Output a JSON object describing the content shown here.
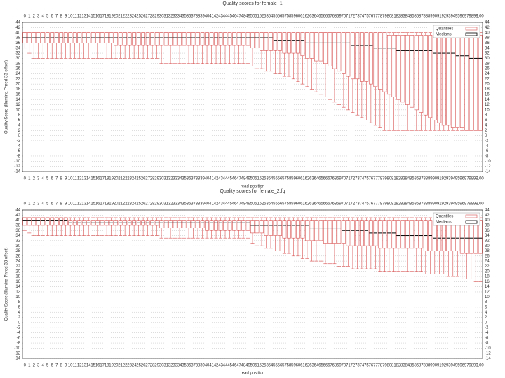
{
  "chart_data": [
    {
      "type": "box",
      "title": "Quality scores for female_1",
      "xlabel": "read position",
      "ylabel": "Quality Score (Illumina Phred-33 offset)",
      "legend": "top-right",
      "legend_labels": [
        "Quantiles",
        "Medians"
      ],
      "box_color": "#d85050",
      "median_color": "#000000",
      "grid": true,
      "ylim": [
        -14,
        44
      ],
      "yticks": [
        -14,
        -12,
        -10,
        -8,
        -6,
        -4,
        -2,
        0,
        2,
        4,
        6,
        8,
        10,
        12,
        14,
        16,
        18,
        20,
        22,
        24,
        26,
        28,
        30,
        32,
        34,
        36,
        38,
        40,
        42,
        44
      ],
      "categories": [
        0,
        1,
        2,
        3,
        4,
        5,
        6,
        7,
        8,
        9,
        10,
        11,
        12,
        13,
        14,
        15,
        16,
        17,
        18,
        19,
        20,
        21,
        22,
        23,
        24,
        25,
        26,
        27,
        28,
        29,
        30,
        31,
        32,
        33,
        34,
        35,
        36,
        37,
        38,
        39,
        40,
        41,
        42,
        43,
        44,
        45,
        46,
        47,
        48,
        49,
        50,
        51,
        52,
        53,
        54,
        55,
        56,
        57,
        58,
        59,
        60,
        61,
        62,
        63,
        64,
        65,
        66,
        67,
        68,
        69,
        70,
        71,
        72,
        73,
        74,
        75,
        76,
        77,
        78,
        79,
        80,
        81,
        82,
        83,
        84,
        85,
        86,
        87,
        88,
        89,
        90,
        91,
        92,
        93,
        94,
        95,
        96,
        97,
        98,
        99,
        100
      ],
      "whislo": [
        34,
        32,
        30,
        30,
        30,
        30,
        30,
        30,
        30,
        30,
        30,
        30,
        30,
        30,
        30,
        30,
        30,
        30,
        30,
        30,
        30,
        30,
        30,
        30,
        30,
        30,
        30,
        30,
        30,
        30,
        28,
        28,
        28,
        28,
        28,
        28,
        28,
        28,
        28,
        28,
        28,
        28,
        28,
        28,
        28,
        28,
        28,
        28,
        28,
        28,
        27,
        26,
        26,
        25,
        25,
        24,
        24,
        23,
        23,
        22,
        21,
        20,
        19,
        18,
        17,
        16,
        15,
        14,
        13,
        12,
        11,
        10,
        9,
        8,
        7,
        6,
        5,
        4,
        3,
        2,
        2,
        2,
        2,
        2,
        2,
        2,
        2,
        2,
        2,
        2,
        2,
        2,
        2,
        2,
        2,
        2,
        2,
        2,
        2,
        2,
        2
      ],
      "q1": [
        36,
        36,
        36,
        36,
        36,
        36,
        36,
        36,
        36,
        36,
        36,
        36,
        36,
        36,
        36,
        36,
        36,
        36,
        36,
        36,
        35,
        35,
        35,
        35,
        35,
        35,
        35,
        35,
        35,
        35,
        35,
        35,
        35,
        35,
        35,
        35,
        35,
        35,
        35,
        35,
        35,
        35,
        35,
        35,
        35,
        35,
        35,
        35,
        35,
        35,
        34,
        34,
        33,
        33,
        33,
        33,
        33,
        32,
        32,
        32,
        32,
        31,
        30,
        30,
        29,
        29,
        28,
        27,
        26,
        25,
        24,
        23,
        22,
        22,
        21,
        21,
        20,
        19,
        18,
        17,
        16,
        15,
        14,
        13,
        12,
        11,
        10,
        9,
        8,
        7,
        6,
        5,
        4,
        4,
        3,
        3,
        3,
        2,
        2,
        2,
        2
      ],
      "med": [
        38,
        38,
        38,
        38,
        38,
        38,
        38,
        38,
        38,
        38,
        38,
        38,
        38,
        38,
        38,
        38,
        38,
        38,
        38,
        38,
        38,
        38,
        38,
        38,
        38,
        38,
        38,
        38,
        38,
        38,
        38,
        38,
        38,
        38,
        38,
        38,
        38,
        38,
        38,
        38,
        38,
        38,
        38,
        38,
        38,
        38,
        38,
        38,
        38,
        38,
        38,
        38,
        38,
        38,
        38,
        37,
        37,
        37,
        37,
        37,
        37,
        37,
        36,
        36,
        36,
        36,
        36,
        36,
        36,
        36,
        36,
        36,
        35,
        35,
        35,
        35,
        35,
        34,
        34,
        34,
        34,
        34,
        33,
        33,
        33,
        33,
        33,
        33,
        33,
        33,
        32,
        32,
        32,
        32,
        32,
        31,
        31,
        31,
        30,
        30,
        30
      ],
      "q3": [
        40,
        40,
        40,
        40,
        40,
        40,
        40,
        40,
        40,
        40,
        40,
        40,
        40,
        40,
        40,
        40,
        40,
        40,
        40,
        40,
        40,
        40,
        40,
        40,
        40,
        40,
        40,
        40,
        40,
        40,
        40,
        40,
        40,
        40,
        40,
        40,
        40,
        40,
        40,
        40,
        40,
        40,
        40,
        40,
        40,
        40,
        40,
        40,
        40,
        40,
        40,
        40,
        40,
        40,
        40,
        40,
        40,
        40,
        40,
        40,
        40,
        40,
        40,
        40,
        40,
        40,
        40,
        40,
        40,
        40,
        40,
        40,
        40,
        40,
        40,
        40,
        40,
        40,
        40,
        40,
        39,
        39,
        39,
        39,
        39,
        39,
        39,
        39,
        39,
        39,
        39,
        39,
        39,
        39,
        39,
        39,
        39,
        39,
        39,
        39,
        39
      ],
      "whishi": [
        40,
        40,
        40,
        40,
        40,
        40,
        40,
        40,
        40,
        40,
        40,
        40,
        40,
        40,
        40,
        40,
        40,
        40,
        40,
        40,
        40,
        40,
        40,
        40,
        40,
        40,
        40,
        40,
        40,
        40,
        40,
        40,
        40,
        40,
        40,
        40,
        40,
        40,
        40,
        40,
        40,
        40,
        40,
        40,
        40,
        40,
        40,
        40,
        40,
        40,
        40,
        40,
        40,
        40,
        40,
        40,
        40,
        40,
        40,
        40,
        40,
        40,
        40,
        40,
        40,
        40,
        40,
        40,
        40,
        40,
        40,
        40,
        40,
        40,
        40,
        40,
        40,
        40,
        40,
        40,
        40,
        40,
        40,
        40,
        40,
        40,
        40,
        40,
        40,
        40,
        40,
        40,
        40,
        40,
        40,
        40,
        40,
        40,
        40,
        40,
        40
      ]
    },
    {
      "type": "box",
      "title": "Quality scores for female_2.fq",
      "xlabel": "read position",
      "ylabel": "Quality Score (Illumina Phred-33 offset)",
      "legend": "top-right",
      "legend_labels": [
        "Quantiles",
        "Medians"
      ],
      "box_color": "#d85050",
      "median_color": "#000000",
      "grid": true,
      "ylim": [
        -14,
        44
      ],
      "yticks": [
        -14,
        -12,
        -10,
        -8,
        -6,
        -4,
        -2,
        0,
        2,
        4,
        6,
        8,
        10,
        12,
        14,
        16,
        18,
        20,
        22,
        24,
        26,
        28,
        30,
        32,
        34,
        36,
        38,
        40,
        42,
        44
      ],
      "categories": [
        0,
        1,
        2,
        3,
        4,
        5,
        6,
        7,
        8,
        9,
        10,
        11,
        12,
        13,
        14,
        15,
        16,
        17,
        18,
        19,
        20,
        21,
        22,
        23,
        24,
        25,
        26,
        27,
        28,
        29,
        30,
        31,
        32,
        33,
        34,
        35,
        36,
        37,
        38,
        39,
        40,
        41,
        42,
        43,
        44,
        45,
        46,
        47,
        48,
        49,
        50,
        51,
        52,
        53,
        54,
        55,
        56,
        57,
        58,
        59,
        60,
        61,
        62,
        63,
        64,
        65,
        66,
        67,
        68,
        69,
        70,
        71,
        72,
        73,
        74,
        75,
        76,
        77,
        78,
        79,
        80,
        81,
        82,
        83,
        84,
        85,
        86,
        87,
        88,
        89,
        90,
        91,
        92,
        93,
        94,
        95,
        96,
        97,
        98,
        99,
        100
      ],
      "whislo": [
        36,
        35,
        34,
        34,
        34,
        34,
        34,
        34,
        34,
        34,
        34,
        34,
        34,
        34,
        34,
        34,
        34,
        34,
        34,
        34,
        34,
        34,
        34,
        34,
        34,
        34,
        34,
        34,
        34,
        34,
        33,
        33,
        33,
        33,
        33,
        33,
        33,
        33,
        33,
        33,
        33,
        33,
        33,
        33,
        33,
        33,
        33,
        33,
        33,
        33,
        31,
        30,
        30,
        29,
        29,
        28,
        28,
        27,
        27,
        26,
        26,
        25,
        25,
        24,
        24,
        24,
        23,
        23,
        23,
        22,
        22,
        22,
        21,
        21,
        21,
        21,
        21,
        21,
        20,
        20,
        20,
        20,
        20,
        20,
        20,
        20,
        20,
        20,
        19,
        19,
        19,
        19,
        19,
        18,
        18,
        18,
        17,
        17,
        17,
        16,
        16
      ],
      "q1": [
        38,
        38,
        38,
        38,
        38,
        38,
        38,
        38,
        38,
        38,
        38,
        38,
        38,
        38,
        38,
        38,
        38,
        38,
        38,
        38,
        38,
        38,
        38,
        38,
        38,
        38,
        38,
        38,
        38,
        38,
        37,
        37,
        37,
        37,
        37,
        37,
        37,
        37,
        37,
        37,
        36,
        36,
        36,
        36,
        36,
        36,
        36,
        36,
        36,
        36,
        35,
        35,
        35,
        34,
        34,
        34,
        34,
        33,
        33,
        33,
        33,
        33,
        32,
        32,
        32,
        32,
        31,
        31,
        31,
        31,
        31,
        30,
        30,
        30,
        30,
        30,
        30,
        30,
        29,
        29,
        29,
        29,
        29,
        29,
        29,
        29,
        29,
        29,
        28,
        28,
        28,
        28,
        28,
        28,
        28,
        28,
        27,
        27,
        27,
        27,
        27
      ],
      "med": [
        40,
        40,
        40,
        40,
        40,
        40,
        40,
        40,
        40,
        40,
        39,
        39,
        39,
        39,
        39,
        39,
        39,
        39,
        39,
        39,
        39,
        39,
        39,
        39,
        39,
        39,
        39,
        39,
        39,
        39,
        39,
        39,
        39,
        39,
        39,
        39,
        39,
        39,
        39,
        39,
        39,
        39,
        39,
        39,
        39,
        39,
        39,
        39,
        39,
        39,
        38,
        38,
        38,
        38,
        38,
        38,
        38,
        38,
        38,
        38,
        38,
        38,
        38,
        37,
        37,
        37,
        37,
        37,
        37,
        37,
        36,
        36,
        36,
        36,
        36,
        36,
        35,
        35,
        35,
        35,
        35,
        35,
        34,
        34,
        34,
        34,
        34,
        34,
        34,
        34,
        33,
        33,
        33,
        33,
        33,
        33,
        33,
        33,
        33,
        33,
        33
      ],
      "q3": [
        41,
        41,
        41,
        41,
        41,
        41,
        41,
        41,
        41,
        41,
        40,
        40,
        40,
        40,
        40,
        40,
        40,
        40,
        40,
        40,
        40,
        40,
        40,
        40,
        40,
        40,
        40,
        40,
        40,
        40,
        40,
        40,
        40,
        40,
        40,
        40,
        40,
        40,
        40,
        40,
        40,
        40,
        40,
        40,
        40,
        40,
        40,
        40,
        40,
        40,
        40,
        40,
        40,
        40,
        40,
        40,
        40,
        40,
        40,
        40,
        40,
        40,
        40,
        40,
        40,
        40,
        40,
        40,
        40,
        40,
        40,
        40,
        40,
        40,
        40,
        40,
        40,
        40,
        40,
        40,
        40,
        40,
        40,
        40,
        40,
        40,
        40,
        40,
        40,
        40,
        40,
        40,
        40,
        40,
        40,
        40,
        40,
        40,
        40,
        40,
        40
      ],
      "whishi": [
        41,
        41,
        41,
        41,
        41,
        41,
        41,
        41,
        41,
        41,
        41,
        41,
        41,
        41,
        41,
        41,
        41,
        41,
        41,
        41,
        41,
        41,
        41,
        41,
        41,
        41,
        41,
        41,
        41,
        41,
        41,
        41,
        41,
        41,
        41,
        41,
        41,
        41,
        41,
        41,
        41,
        41,
        41,
        41,
        41,
        41,
        41,
        41,
        41,
        41,
        41,
        41,
        41,
        41,
        41,
        41,
        41,
        41,
        41,
        41,
        41,
        41,
        41,
        41,
        41,
        41,
        41,
        41,
        41,
        41,
        41,
        41,
        41,
        41,
        41,
        41,
        41,
        41,
        41,
        41,
        41,
        41,
        41,
        41,
        41,
        41,
        41,
        41,
        41,
        41,
        41,
        41,
        41,
        41,
        41,
        41,
        41,
        41,
        41,
        41,
        41
      ]
    }
  ]
}
